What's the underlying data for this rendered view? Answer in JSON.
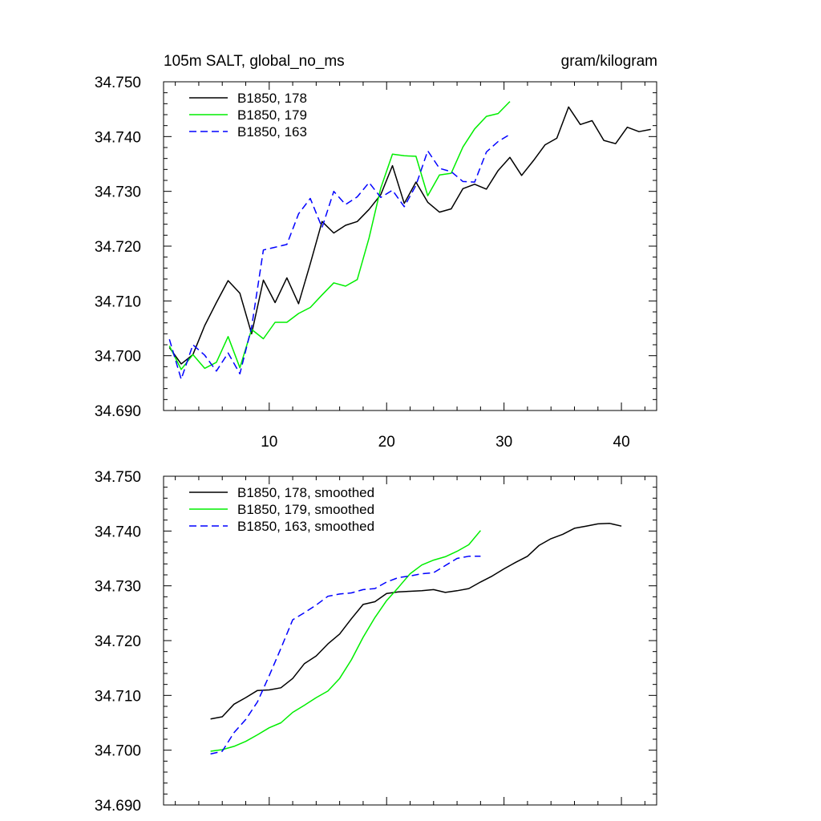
{
  "chart_data": [
    {
      "type": "line",
      "title": "105m SALT, global_no_ms",
      "units": "gram/kilogram",
      "xlim": [
        1,
        43
      ],
      "ylim": [
        34.69,
        34.75
      ],
      "x_tick_labels": [
        "10",
        "20",
        "30",
        "40"
      ],
      "y_tick_labels": [
        "34.750",
        "34.740",
        "34.730",
        "34.720",
        "34.710",
        "34.700",
        "34.690"
      ],
      "legend_position": "top-left",
      "grid": false,
      "series": [
        {
          "name": "B1850, 178",
          "color": "#000000",
          "dash": "solid",
          "x": [
            1.5,
            2.5,
            3.5,
            4.5,
            5.5,
            6.5,
            7.5,
            8.5,
            9.5,
            10.5,
            11.5,
            12.5,
            13.5,
            14.5,
            15.5,
            16.5,
            17.5,
            18.5,
            19.5,
            20.5,
            21.5,
            22.5,
            23.5,
            24.5,
            25.5,
            26.5,
            27.5,
            28.5,
            29.5,
            30.5,
            31.5,
            32.5,
            33.5,
            34.5,
            35.5,
            36.5,
            37.5,
            38.5,
            39.5,
            40.5,
            41.5,
            42.5
          ],
          "y": [
            34.7015,
            34.6985,
            34.7002,
            34.7055,
            34.7097,
            34.7137,
            34.7114,
            34.704,
            34.7138,
            34.7097,
            34.7142,
            34.7095,
            34.7168,
            34.7245,
            34.7224,
            34.7238,
            34.7245,
            34.7267,
            34.7294,
            34.7347,
            34.7278,
            34.7317,
            34.728,
            34.7262,
            34.7268,
            34.7305,
            34.7313,
            34.7304,
            34.7338,
            34.7362,
            34.7329,
            34.7356,
            34.7385,
            34.7397,
            34.7454,
            34.7422,
            34.7429,
            34.7393,
            34.7387,
            34.7417,
            34.7409,
            34.7413
          ]
        },
        {
          "name": "B1850, 179",
          "color": "#00ee00",
          "dash": "solid",
          "x": [
            1.5,
            2.5,
            3.5,
            4.5,
            5.5,
            6.5,
            7.5,
            8.5,
            9.5,
            10.5,
            11.5,
            12.5,
            13.5,
            14.5,
            15.5,
            16.5,
            17.5,
            18.5,
            19.5,
            20.5,
            21.5,
            22.5,
            23.5,
            24.5,
            25.5,
            26.5,
            27.5,
            28.5,
            29.5,
            30.5
          ],
          "y": [
            34.7018,
            34.6975,
            34.7002,
            34.6977,
            34.6988,
            34.7035,
            34.6978,
            34.7048,
            34.7031,
            34.7061,
            34.7061,
            34.7077,
            34.7088,
            34.7111,
            34.7133,
            34.7127,
            34.7139,
            34.7215,
            34.7306,
            34.7368,
            34.7365,
            34.7364,
            34.7292,
            34.733,
            34.7333,
            34.7381,
            34.7414,
            34.7437,
            34.7442,
            34.7464
          ]
        },
        {
          "name": "B1850, 163",
          "color": "#0000ff",
          "dash": "dashed",
          "x": [
            1.5,
            2.5,
            3.5,
            4.5,
            5.5,
            6.5,
            7.5,
            8.5,
            9.5,
            10.5,
            11.5,
            12.5,
            13.5,
            14.5,
            15.5,
            16.5,
            17.5,
            18.5,
            19.5,
            20.5,
            21.5,
            22.5,
            23.5,
            24.5,
            25.5,
            26.5,
            27.5,
            28.5,
            29.5,
            30.5
          ],
          "y": [
            34.703,
            34.6957,
            34.702,
            34.7001,
            34.6972,
            34.7005,
            34.6967,
            34.7052,
            34.7193,
            34.7198,
            34.7203,
            34.7259,
            34.7287,
            34.7234,
            34.73,
            34.7276,
            34.729,
            34.7316,
            34.7289,
            34.7302,
            34.7272,
            34.7311,
            34.7374,
            34.7342,
            34.7336,
            34.7318,
            34.7317,
            34.7372,
            34.7391,
            34.7404
          ]
        }
      ]
    },
    {
      "type": "line",
      "xlim": [
        1,
        43
      ],
      "ylim": [
        34.69,
        34.75
      ],
      "y_tick_labels": [
        "34.750",
        "34.740",
        "34.730",
        "34.720",
        "34.710",
        "34.700",
        "34.690"
      ],
      "legend_position": "top-left",
      "grid": false,
      "series": [
        {
          "name": "B1850, 178, smoothed",
          "color": "#000000",
          "dash": "solid",
          "x": [
            5,
            6,
            7,
            8,
            9,
            10,
            11,
            12,
            13,
            14,
            15,
            16,
            17,
            18,
            19,
            20,
            21,
            22,
            23,
            24,
            25,
            26,
            27,
            28,
            29,
            30,
            31,
            32,
            33,
            34,
            35,
            36,
            37,
            38,
            39,
            40
          ],
          "y": [
            34.7057,
            34.7061,
            34.7084,
            34.7096,
            34.7109,
            34.711,
            34.7114,
            34.7131,
            34.7158,
            34.7172,
            34.7194,
            34.7212,
            34.724,
            34.7266,
            34.7271,
            34.7286,
            34.7289,
            34.729,
            34.7291,
            34.7293,
            34.7288,
            34.7291,
            34.7295,
            34.7307,
            34.7318,
            34.7331,
            34.7343,
            34.7354,
            34.7374,
            34.7386,
            34.7394,
            34.7405,
            34.7409,
            34.7413,
            34.7414,
            34.7409
          ]
        },
        {
          "name": "B1850, 179, smoothed",
          "color": "#00ee00",
          "dash": "solid",
          "x": [
            5,
            6,
            7,
            8,
            9,
            10,
            11,
            12,
            13,
            14,
            15,
            16,
            17,
            18,
            19,
            20,
            21,
            22,
            23,
            24,
            25,
            26,
            27,
            28
          ],
          "y": [
            34.6998,
            34.7001,
            34.7007,
            34.7016,
            34.7028,
            34.7041,
            34.705,
            34.7069,
            34.7082,
            34.7096,
            34.7108,
            34.7131,
            34.7165,
            34.7206,
            34.7242,
            34.7273,
            34.7297,
            34.7322,
            34.7338,
            34.7347,
            34.7353,
            34.7363,
            34.7375,
            34.7401
          ]
        },
        {
          "name": "B1850, 163, smoothed",
          "color": "#0000ff",
          "dash": "dashed",
          "x": [
            5,
            6,
            7,
            8,
            9,
            10,
            11,
            12,
            13,
            14,
            15,
            16,
            17,
            18,
            19,
            20,
            21,
            22,
            23,
            24,
            25,
            26,
            27,
            28
          ],
          "y": [
            34.6993,
            34.6998,
            34.7032,
            34.7056,
            34.7088,
            34.7136,
            34.7186,
            34.7238,
            34.7251,
            34.7265,
            34.7281,
            34.7285,
            34.7287,
            34.7293,
            34.7295,
            34.7307,
            34.7315,
            34.7318,
            34.7322,
            34.7324,
            34.7337,
            34.735,
            34.7354,
            34.7354
          ]
        }
      ]
    }
  ]
}
